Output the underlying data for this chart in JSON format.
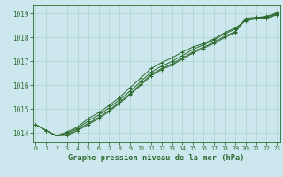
{
  "xlabel": "Graphe pression niveau de la mer (hPa)",
  "ylabel": "",
  "background_color": "#cce8ee",
  "grid_color": "#b0d4cc",
  "line_color": "#2d6a2d",
  "xlim": [
    -0.3,
    23.3
  ],
  "ylim": [
    1013.6,
    1019.35
  ],
  "yticks": [
    1014,
    1015,
    1016,
    1017,
    1018,
    1019
  ],
  "xticks": [
    0,
    1,
    2,
    3,
    4,
    5,
    6,
    7,
    8,
    9,
    10,
    11,
    12,
    13,
    14,
    15,
    16,
    17,
    18,
    19,
    20,
    21,
    22,
    23
  ],
  "series": [
    [
      1014.35,
      1014.1,
      1013.88,
      1013.9,
      1014.1,
      1014.35,
      1014.6,
      1014.9,
      1015.25,
      1015.6,
      1016.0,
      1016.4,
      1016.65,
      1016.85,
      1017.1,
      1017.35,
      1017.55,
      1017.75,
      1018.0,
      1018.2,
      1018.8,
      1018.85,
      1018.85,
      1019.05
    ],
    [
      1014.35,
      1014.1,
      1013.88,
      1013.95,
      1014.15,
      1014.4,
      1014.65,
      1014.95,
      1015.3,
      1015.65,
      1016.05,
      1016.45,
      1016.7,
      1016.9,
      1017.15,
      1017.4,
      1017.6,
      1017.8,
      1018.05,
      1018.25,
      1018.75,
      1018.82,
      1018.9,
      1019.0
    ],
    [
      1014.35,
      1014.1,
      1013.88,
      1014.0,
      1014.2,
      1014.5,
      1014.75,
      1015.05,
      1015.4,
      1015.75,
      1016.15,
      1016.55,
      1016.8,
      1017.0,
      1017.25,
      1017.5,
      1017.7,
      1017.9,
      1018.15,
      1018.35,
      1018.72,
      1018.8,
      1018.82,
      1018.98
    ],
    [
      1014.35,
      1014.1,
      1013.88,
      1014.05,
      1014.25,
      1014.6,
      1014.85,
      1015.15,
      1015.5,
      1015.9,
      1016.3,
      1016.7,
      1016.95,
      1017.15,
      1017.4,
      1017.6,
      1017.75,
      1017.95,
      1018.2,
      1018.4,
      1018.7,
      1018.78,
      1018.8,
      1018.95
    ]
  ]
}
